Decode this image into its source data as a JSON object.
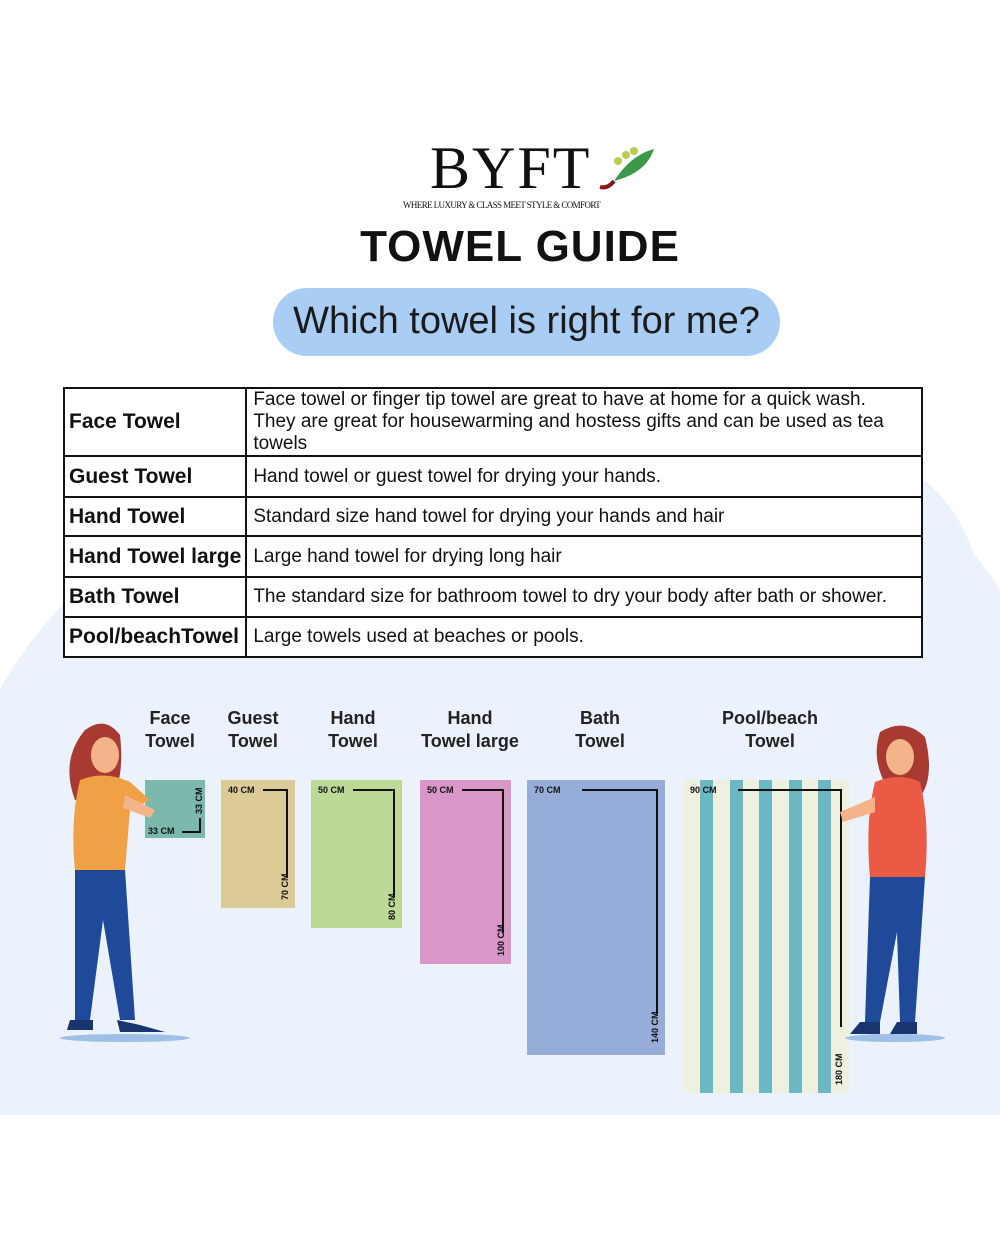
{
  "brand": {
    "name": "BYFT",
    "tagline": "WHERE LUXURY & CLASS MEET STYLE & COMFORT"
  },
  "title": "TOWEL GUIDE",
  "question": "Which towel is right for me?",
  "table": [
    {
      "name": "Face Towel",
      "desc": "Face towel or finger tip towel are great to have at home for a quick wash.",
      "desc2": "They are great for housewarming and hostess gifts and can be used as tea towels"
    },
    {
      "name": "Guest Towel",
      "desc": "Hand towel or guest towel for drying your hands."
    },
    {
      "name": "Hand Towel",
      "desc": "Standard size hand towel for drying your hands and hair"
    },
    {
      "name": "Hand Towel large",
      "desc": "Large hand towel for drying long hair"
    },
    {
      "name": "Bath Towel",
      "desc": "The standard size for bathroom towel to dry your body after bath or shower."
    },
    {
      "name": "Pool/beachTowel",
      "desc": "Large towels used at beaches or pools."
    }
  ],
  "towels": [
    {
      "l1": "Face",
      "l2": "Towel",
      "w": "33 CM",
      "h": "33 CM",
      "color": "#7cb9ad"
    },
    {
      "l1": "Guest",
      "l2": "Towel",
      "w": "40 CM",
      "h": "70 CM",
      "color": "#dccb97"
    },
    {
      "l1": "Hand",
      "l2": "Towel",
      "w": "50 CM",
      "h": "80 CM",
      "color": "#bcd996"
    },
    {
      "l1": "Hand",
      "l2": "Towel large",
      "w": "50 CM",
      "h": "100 CM",
      "color": "#d896c9"
    },
    {
      "l1": "Bath",
      "l2": "Towel",
      "w": "70 CM",
      "h": "140 CM",
      "color": "#97add9"
    },
    {
      "l1": "Pool/beach",
      "l2": "Towel",
      "w": "90 CM",
      "h": "180 CM",
      "color": "#eef0e0",
      "stripe": "#6ab8c4"
    }
  ],
  "colors": {
    "pill": "#a9cdf3",
    "background": "#ebf2fb"
  }
}
